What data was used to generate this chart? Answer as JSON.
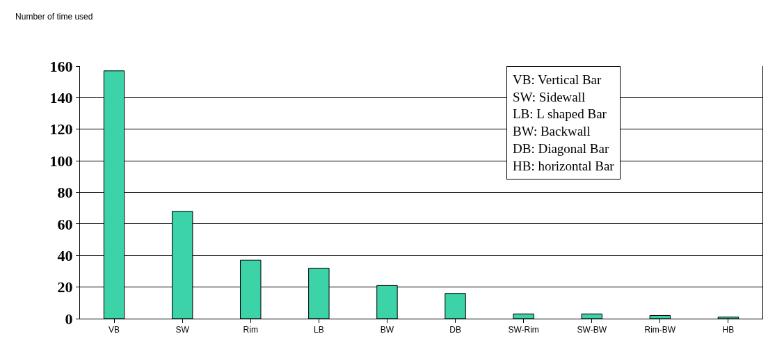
{
  "chart_data": {
    "type": "bar",
    "title": "Number of time used",
    "categories": [
      "VB",
      "SW",
      "Rim",
      "LB",
      "BW",
      "DB",
      "SW-Rim",
      "SW-BW",
      "Rim-BW",
      "HB"
    ],
    "values": [
      157,
      68,
      37,
      32,
      21,
      16,
      3,
      3,
      2,
      1
    ],
    "color": "#3cd3a8",
    "ylim": [
      0,
      160
    ],
    "yticks": [
      0,
      20,
      40,
      60,
      80,
      100,
      120,
      140,
      160
    ],
    "grid": "y",
    "annotations": [
      "VB: Vertical Bar",
      "SW: Sidewall",
      "LB: L shaped Bar",
      "BW: Backwall",
      "DB: Diagonal Bar",
      "HB: horizontal Bar"
    ]
  }
}
